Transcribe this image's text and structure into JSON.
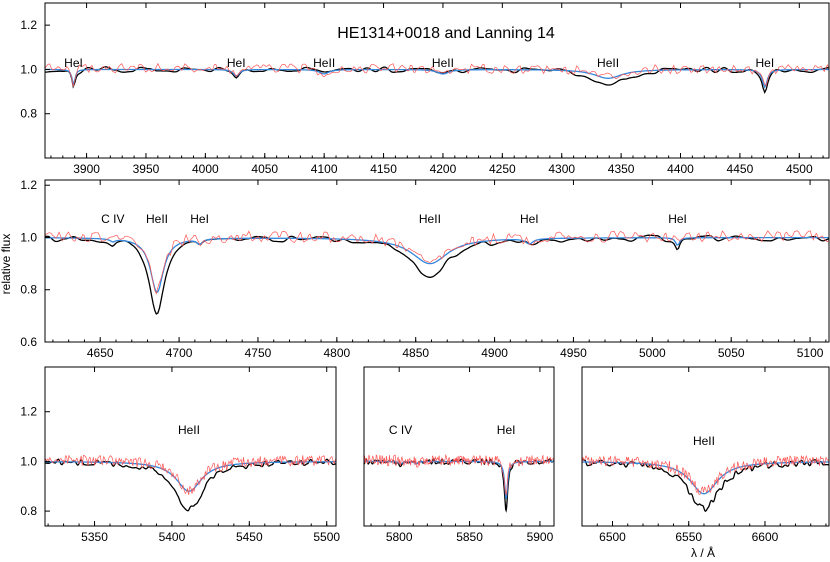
{
  "figure": {
    "title": "HE1314+0018  and  Lanning 14",
    "ylabel": "relative flux",
    "xlabel": "λ / Å"
  },
  "chart_data": [
    {
      "type": "line",
      "id": "top",
      "xlim": [
        3865,
        4525
      ],
      "ylim": [
        0.6,
        1.3
      ],
      "xticks": [
        3900,
        3950,
        4000,
        4050,
        4100,
        4150,
        4200,
        4250,
        4300,
        4350,
        4400,
        4450,
        4500
      ],
      "yticks": [
        0.8,
        1.0,
        1.2
      ],
      "line_labels": [
        {
          "text": "HeI",
          "x": 3889
        },
        {
          "text": "HeI",
          "x": 4026
        },
        {
          "text": "HeII",
          "x": 4100
        },
        {
          "text": "HeII",
          "x": 4200
        },
        {
          "text": "HeII",
          "x": 4339
        },
        {
          "text": "HeI",
          "x": 4471
        }
      ],
      "features": [
        {
          "center": 3889,
          "width": 1.5,
          "depth_obs": 0.08,
          "depth_model": 0.07
        },
        {
          "center": 4026,
          "width": 3,
          "depth_obs": 0.04,
          "depth_model": 0.03
        },
        {
          "center": 4100,
          "width": 5,
          "depth_obs": 0.02,
          "depth_model": 0.02
        },
        {
          "center": 4200,
          "width": 6,
          "depth_obs": 0.02,
          "depth_model": 0.02
        },
        {
          "center": 4339,
          "width": 14,
          "depth_obs": 0.07,
          "depth_model": 0.04
        },
        {
          "center": 4471,
          "width": 2.5,
          "depth_obs": 0.1,
          "depth_model": 0.08
        }
      ],
      "series": [
        {
          "key": "observed",
          "color": "#000000"
        },
        {
          "key": "model",
          "color": "#3388dd"
        },
        {
          "key": "comparison",
          "color": "#ff5555"
        }
      ]
    },
    {
      "type": "line",
      "id": "middle",
      "xlim": [
        4615,
        5112
      ],
      "ylim": [
        0.6,
        1.22
      ],
      "xticks": [
        4650,
        4700,
        4750,
        4800,
        4850,
        4900,
        4950,
        5000,
        5050,
        5100
      ],
      "yticks": [
        0.6,
        0.8,
        1.0,
        1.2
      ],
      "line_labels": [
        {
          "text": "C IV",
          "x": 4658
        },
        {
          "text": "HeII",
          "x": 4686
        },
        {
          "text": "HeI",
          "x": 4713
        },
        {
          "text": "HeII",
          "x": 4859
        },
        {
          "text": "HeI",
          "x": 4922
        },
        {
          "text": "HeI",
          "x": 5016
        }
      ],
      "features": [
        {
          "center": 4658,
          "width": 2,
          "depth_obs": 0.02,
          "depth_model": 0.01
        },
        {
          "center": 4686,
          "width": 5,
          "depth_obs": 0.29,
          "depth_model": 0.21
        },
        {
          "center": 4713,
          "width": 2,
          "depth_obs": 0.02,
          "depth_model": 0.02
        },
        {
          "center": 4859,
          "width": 14,
          "depth_obs": 0.14,
          "depth_model": 0.1
        },
        {
          "center": 4922,
          "width": 3,
          "depth_obs": 0.02,
          "depth_model": 0.02
        },
        {
          "center": 5016,
          "width": 1.5,
          "depth_obs": 0.04,
          "depth_model": 0.03
        }
      ],
      "series": [
        {
          "key": "observed",
          "color": "#000000"
        },
        {
          "key": "model",
          "color": "#3388dd"
        },
        {
          "key": "comparison",
          "color": "#ff5555"
        }
      ]
    },
    {
      "type": "line",
      "id": "bottom-left",
      "xlim": [
        5318,
        5506
      ],
      "ylim": [
        0.74,
        1.38
      ],
      "xticks": [
        5350,
        5400,
        5450,
        5500
      ],
      "yticks": [
        0.8,
        1.0,
        1.2
      ],
      "line_labels": [
        {
          "text": "HeII",
          "x": 5411
        }
      ],
      "features": [
        {
          "center": 5411,
          "width": 10,
          "depth_obs": 0.19,
          "depth_model": 0.12
        }
      ],
      "series": [
        {
          "key": "observed",
          "color": "#000000"
        },
        {
          "key": "model",
          "color": "#3388dd"
        },
        {
          "key": "comparison",
          "color": "#ff5555"
        }
      ]
    },
    {
      "type": "line",
      "id": "bottom-middle",
      "xlim": [
        5775,
        5910
      ],
      "ylim": [
        0.74,
        1.38
      ],
      "xticks": [
        5800,
        5850,
        5900
      ],
      "yticks": [],
      "line_labels": [
        {
          "text": "C IV",
          "x": 5801
        },
        {
          "text": "HeI",
          "x": 5876
        }
      ],
      "features": [
        {
          "center": 5801,
          "width": 1.5,
          "depth_obs": 0.02,
          "depth_model": 0.01
        },
        {
          "center": 5812,
          "width": 1.5,
          "depth_obs": 0.01,
          "depth_model": 0.01
        },
        {
          "center": 5876,
          "width": 1.3,
          "depth_obs": 0.19,
          "depth_model": 0.15
        }
      ],
      "series": [
        {
          "key": "observed",
          "color": "#000000"
        },
        {
          "key": "model",
          "color": "#3388dd"
        },
        {
          "key": "comparison",
          "color": "#ff5555"
        }
      ]
    },
    {
      "type": "line",
      "id": "bottom-right",
      "xlim": [
        6480,
        6642
      ],
      "ylim": [
        0.74,
        1.38
      ],
      "xticks": [
        6500,
        6550,
        6600
      ],
      "yticks": [],
      "line_labels": [
        {
          "text": "HeII",
          "x": 6560
        }
      ],
      "features": [
        {
          "center": 6560,
          "width": 11,
          "depth_obs": 0.19,
          "depth_model": 0.13
        }
      ],
      "series": [
        {
          "key": "observed",
          "color": "#000000"
        },
        {
          "key": "model",
          "color": "#3388dd"
        },
        {
          "key": "comparison",
          "color": "#ff5555"
        }
      ]
    }
  ]
}
